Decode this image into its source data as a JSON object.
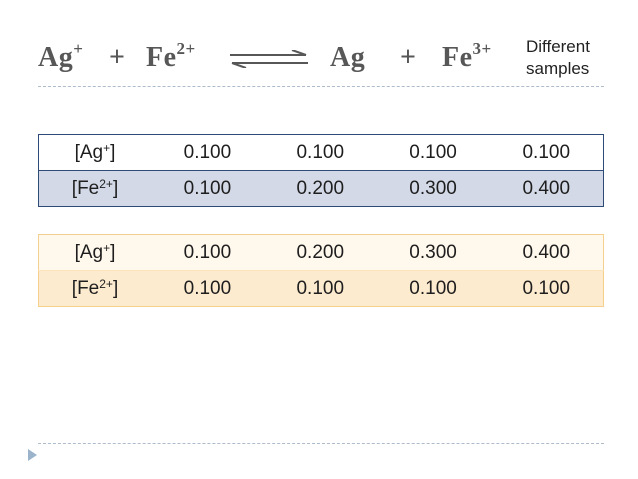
{
  "equation": {
    "reactant1": "Ag",
    "reactant1_charge": "+",
    "plus1": "+",
    "reactant2": "Fe",
    "reactant2_charge": "2+",
    "arrow_icon": "equilibrium-arrows-icon",
    "product1": "Ag",
    "plus2": "+",
    "product2": "Fe",
    "product2_charge": "3+"
  },
  "note": {
    "line1": "Different",
    "line2": "samples"
  },
  "table1": {
    "rows": [
      {
        "label": "Ag",
        "charge": "+",
        "values": [
          "0.100",
          "0.100",
          "0.100",
          "0.100"
        ]
      },
      {
        "label": "Fe",
        "charge": "2+",
        "values": [
          "0.100",
          "0.200",
          "0.300",
          "0.400"
        ]
      }
    ]
  },
  "table2": {
    "rows": [
      {
        "label": "Ag",
        "charge": "+",
        "values": [
          "0.100",
          "0.200",
          "0.300",
          "0.400"
        ]
      },
      {
        "label": "Fe",
        "charge": "2+",
        "values": [
          "0.100",
          "0.100",
          "0.100",
          "0.100"
        ]
      }
    ]
  },
  "colors": {
    "table1_border": "#2e4a77",
    "table1_alt_row": "#d3d9e6",
    "table2_border": "#f4cf8e",
    "table2_row1": "#fff8ec",
    "table2_row2": "#fdebd0",
    "equation_text": "#575757"
  }
}
